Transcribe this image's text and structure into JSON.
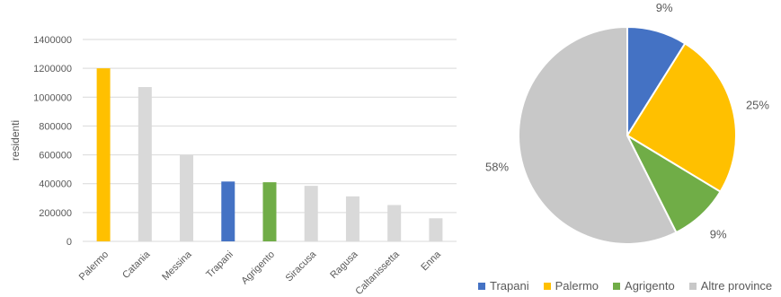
{
  "chart_data": [
    {
      "type": "bar",
      "ylabel": "residenti",
      "ylim": [
        0,
        1400000
      ],
      "yticks": [
        0,
        200000,
        400000,
        600000,
        800000,
        1000000,
        1200000,
        1400000
      ],
      "grid": true,
      "categories": [
        "Palermo",
        "Catania",
        "Messina",
        "Trapani",
        "Agrigento",
        "Siracusa",
        "Ragusa",
        "Caltanissetta",
        "Enna"
      ],
      "values": [
        1200000,
        1070000,
        600000,
        415000,
        410000,
        385000,
        312000,
        252000,
        160000
      ],
      "bar_colors": [
        "#FFC000",
        "#D9D9D9",
        "#D9D9D9",
        "#4472C4",
        "#70AD47",
        "#D9D9D9",
        "#D9D9D9",
        "#D9D9D9",
        "#D9D9D9"
      ]
    },
    {
      "type": "pie",
      "slices": [
        {
          "label": "Trapani",
          "value": 9,
          "display": "9%",
          "color": "#4472C4"
        },
        {
          "label": "Palermo",
          "value": 25,
          "display": "25%",
          "color": "#FFC000"
        },
        {
          "label": "Agrigento",
          "value": 9,
          "display": "9%",
          "color": "#70AD47"
        },
        {
          "label": "Altre province",
          "value": 58,
          "display": "58%",
          "color": "#C8C8C8"
        }
      ],
      "legend_position": "bottom"
    }
  ]
}
